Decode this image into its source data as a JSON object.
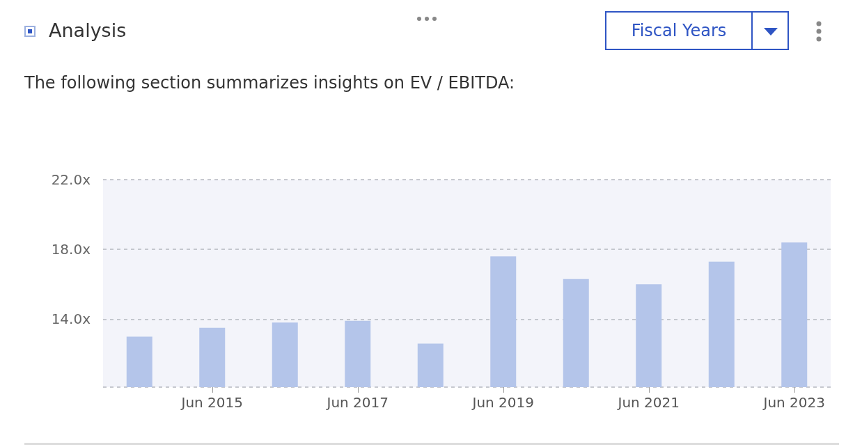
{
  "chart_data": {
    "type": "bar",
    "title": "Analysis",
    "subtitle": "The following section summarizes insights on EV / EBITDA:",
    "annotations": [
      "Fiscal Years"
    ],
    "categories": [
      null,
      "Jun 2015",
      null,
      "Jun 2017",
      null,
      "Jun 2019",
      null,
      "Jun 2021",
      null,
      "Jun 2023"
    ],
    "values": [
      13.0,
      13.5,
      13.8,
      13.9,
      12.6,
      17.6,
      16.3,
      16.0,
      17.3,
      18.4
    ],
    "color": "#b4c5ea",
    "ylim": [
      10.1,
      22
    ],
    "yticks": [
      {
        "value": 10.1,
        "label": null
      },
      {
        "value": 14,
        "label": "14.0x"
      },
      {
        "value": 18,
        "label": "18.0x"
      },
      {
        "value": 22,
        "label": "22.0x"
      }
    ],
    "grid": "y"
  }
}
